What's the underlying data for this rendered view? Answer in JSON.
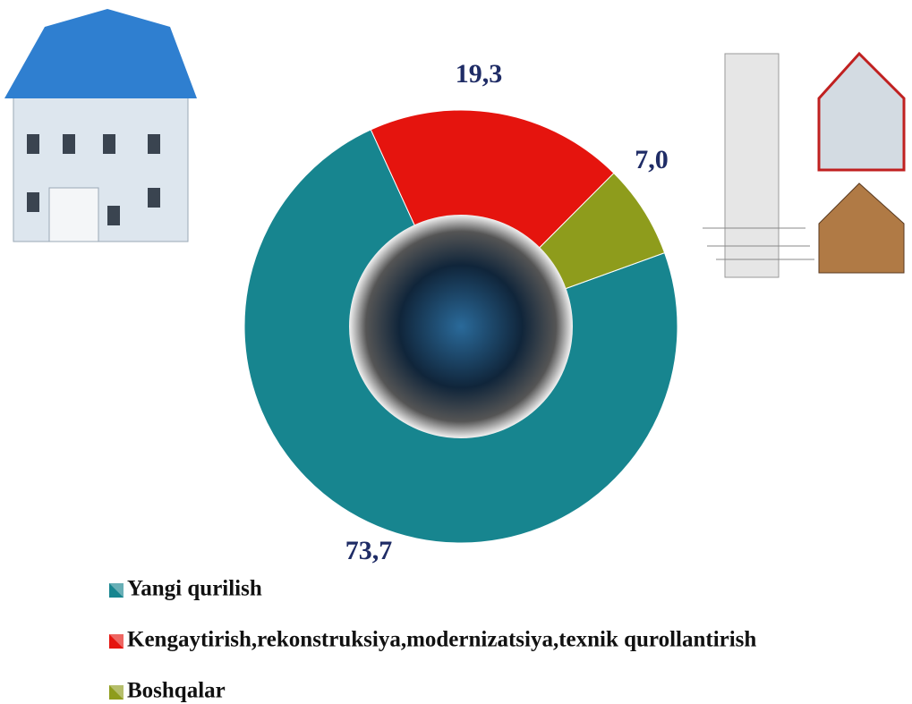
{
  "chart_data": {
    "type": "donut",
    "categories": [
      "Yangi qurilish",
      "Kengaytirish,rekonstruksiya,modernizatsiya,texnik qurollantirish",
      "Boshqalar"
    ],
    "values": [
      73.7,
      19.3,
      7.0
    ],
    "value_labels": [
      "73,7",
      "19,3",
      "7,0"
    ],
    "colors": [
      "#17858f",
      "#e5140e",
      "#8e9c1c"
    ]
  }
}
